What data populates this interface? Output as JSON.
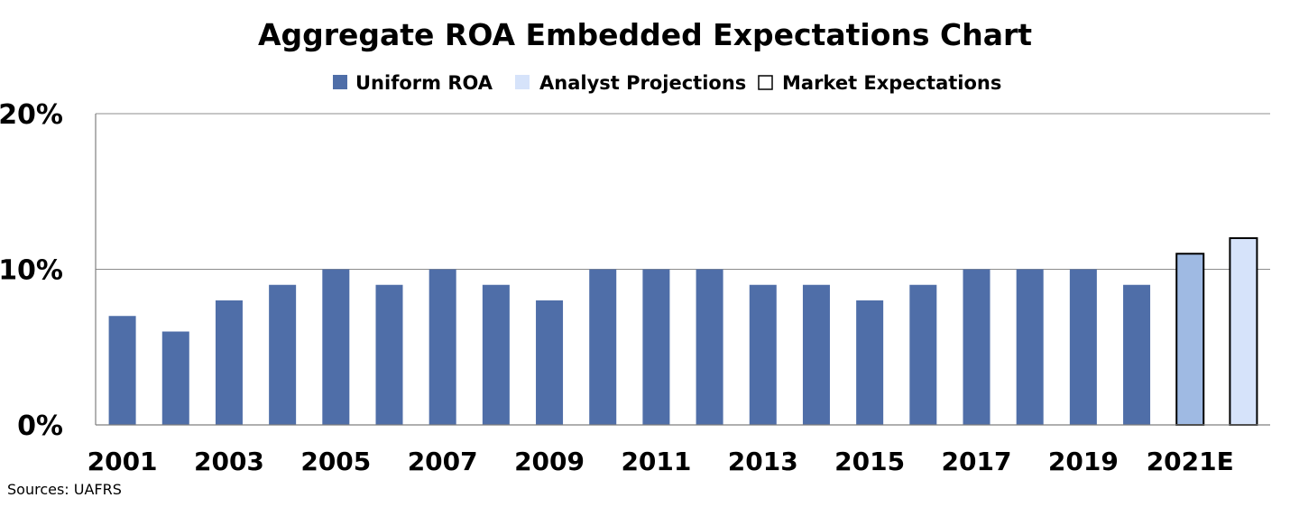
{
  "chart_data": {
    "type": "bar",
    "title": "Aggregate ROA Embedded Expectations Chart",
    "xlabel": "",
    "ylabel": "",
    "ylim": [
      0,
      20
    ],
    "yticks": [
      "0%",
      "10%",
      "20%"
    ],
    "ytick_values": [
      0,
      10,
      20
    ],
    "grid": true,
    "legend_position": "top-center",
    "categories": [
      "2001",
      "2002",
      "2003",
      "2004",
      "2005",
      "2006",
      "2007",
      "2008",
      "2009",
      "2010",
      "2011",
      "2012",
      "2013",
      "2014",
      "2015",
      "2016",
      "2017",
      "2018",
      "2019",
      "2020",
      "2021E",
      "2022E"
    ],
    "visible_xtick_labels": [
      "2001",
      "2003",
      "2005",
      "2007",
      "2009",
      "2011",
      "2013",
      "2015",
      "2017",
      "2019",
      "2021E"
    ],
    "series": [
      {
        "name": "Uniform ROA",
        "color": "#4f6ea8",
        "values": [
          7,
          6,
          8,
          9,
          10,
          9,
          10,
          9,
          8,
          10,
          10,
          10,
          9,
          9,
          8,
          9,
          10,
          10,
          10,
          9,
          null,
          null
        ]
      },
      {
        "name": "Analyst Projections",
        "color": "#d6e3fa",
        "values": [
          null,
          null,
          null,
          null,
          null,
          null,
          null,
          null,
          null,
          null,
          null,
          null,
          null,
          null,
          null,
          null,
          null,
          null,
          null,
          null,
          11,
          12
        ]
      },
      {
        "name": "Market Expectations",
        "color": "#ffffff",
        "values": [
          null,
          null,
          null,
          null,
          null,
          null,
          null,
          null,
          null,
          null,
          null,
          null,
          null,
          null,
          null,
          null,
          null,
          null,
          null,
          null,
          11,
          12
        ]
      }
    ],
    "forecast_bar_fills": [
      "#9fbae3",
      "#d6e3fa"
    ],
    "forecast_outline_color": "#000000"
  },
  "source_note": "Sources: UAFRS"
}
